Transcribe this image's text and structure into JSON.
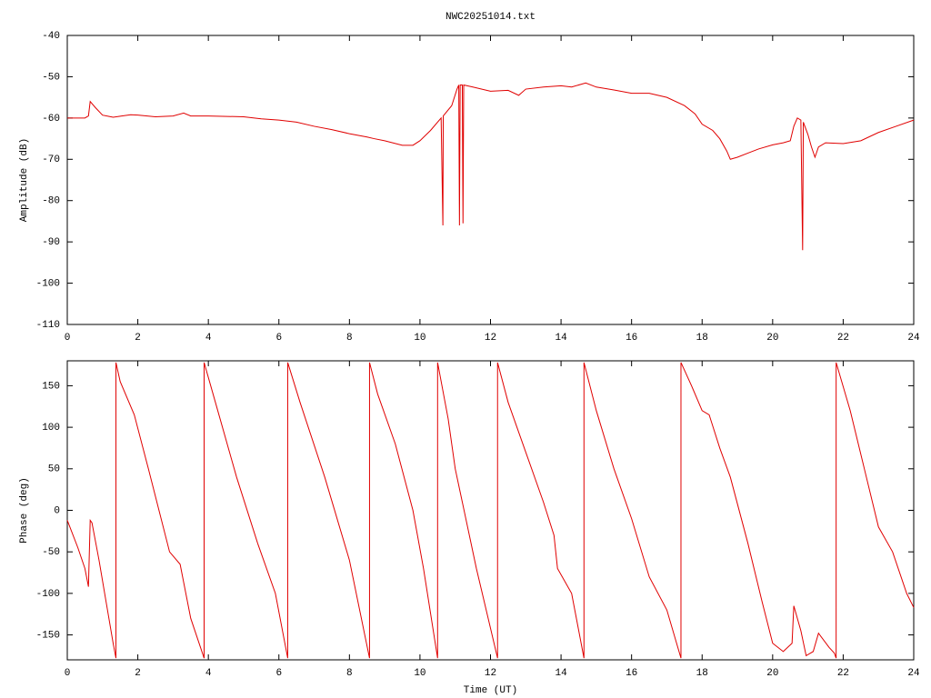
{
  "chart_data": [
    {
      "type": "line",
      "title": "NWC20251014.txt",
      "ylabel": "Amplitude (dB)",
      "color": "#e00000",
      "xlim": [
        0,
        24
      ],
      "xticks": [
        0,
        2,
        4,
        6,
        8,
        10,
        12,
        14,
        16,
        18,
        20,
        22,
        24
      ],
      "ylim": [
        -110,
        -40
      ],
      "yticks": [
        -110,
        -100,
        -90,
        -80,
        -70,
        -60,
        -50,
        -40
      ],
      "x": [
        0,
        0.5,
        0.6,
        0.65,
        0.8,
        1.0,
        1.3,
        1.8,
        2.0,
        2.5,
        3.0,
        3.3,
        3.5,
        4,
        5,
        5.5,
        6,
        6.5,
        7,
        7.5,
        8,
        8.5,
        8.7,
        9,
        9.5,
        9.8,
        10,
        10.3,
        10.6,
        10.65,
        10.66,
        10.9,
        11.05,
        11.1,
        11.12,
        11.14,
        11.2,
        11.22,
        11.24,
        11.5,
        12,
        12.5,
        12.8,
        13,
        13.5,
        14,
        14.3,
        14.7,
        15,
        15.5,
        16,
        16.5,
        17,
        17.5,
        17.8,
        18,
        18.3,
        18.5,
        18.7,
        18.8,
        19,
        19.3,
        19.6,
        20,
        20.3,
        20.5,
        20.6,
        20.7,
        20.8,
        20.85,
        20.87,
        21,
        21.1,
        21.2,
        21.3,
        21.5,
        22,
        22.5,
        23,
        23.5,
        24
      ],
      "values": [
        -60,
        -60,
        -59.5,
        -56,
        -57.5,
        -59.3,
        -59.8,
        -59.2,
        -59.3,
        -59.7,
        -59.5,
        -58.8,
        -59.5,
        -59.5,
        -59.7,
        -60.2,
        -60.5,
        -61,
        -62,
        -62.8,
        -63.8,
        -64.6,
        -65,
        -65.5,
        -66.6,
        -66.6,
        -65.5,
        -63,
        -60,
        -86,
        -59.5,
        -57,
        -53,
        -52,
        -86,
        -52,
        -52,
        -85.5,
        -52,
        -52.5,
        -53.5,
        -53.3,
        -54.5,
        -53,
        -52.5,
        -52.2,
        -52.5,
        -51.5,
        -52.5,
        -53.2,
        -54,
        -54,
        -55,
        -57,
        -59,
        -61.5,
        -63,
        -65,
        -68,
        -70,
        -69.5,
        -68.5,
        -67.5,
        -66.5,
        -66,
        -65.5,
        -62,
        -60,
        -60.5,
        -92,
        -61,
        -64,
        -67,
        -69.5,
        -67,
        -66,
        -66.2,
        -65.5,
        -63.5,
        -62,
        -60.5
      ]
    },
    {
      "type": "line",
      "ylabel": "Phase (deg)",
      "xlabel": "Time (UT)",
      "color": "#e00000",
      "xlim": [
        0,
        24
      ],
      "xticks": [
        0,
        2,
        4,
        6,
        8,
        10,
        12,
        14,
        16,
        18,
        20,
        22,
        24
      ],
      "ylim": [
        -180,
        180
      ],
      "yticks": [
        -150,
        -100,
        -50,
        0,
        50,
        100,
        150
      ],
      "x": [
        0,
        0.3,
        0.5,
        0.6,
        0.65,
        0.7,
        0.9,
        1.1,
        1.3,
        1.38,
        1.38,
        1.5,
        1.9,
        2.3,
        2.6,
        2.9,
        3.2,
        3.5,
        3.88,
        3.88,
        4.2,
        4.8,
        5.4,
        5.9,
        6.25,
        6.25,
        6.6,
        7.3,
        8,
        8.57,
        8.57,
        8.8,
        9.3,
        9.8,
        10.1,
        10.5,
        10.5,
        10.8,
        11.0,
        11.2,
        11.6,
        12.2,
        12.2,
        12.5,
        13,
        13.5,
        13.8,
        13.9,
        14.3,
        14.65,
        14.65,
        15,
        15.5,
        16,
        16.5,
        17,
        17.4,
        17.4,
        17.7,
        18,
        18.2,
        18.5,
        18.8,
        19.3,
        19.7,
        20,
        20.3,
        20.55,
        20.6,
        20.8,
        20.95,
        21.15,
        21.3,
        21.6,
        21.75,
        21.8,
        21.8,
        22.2,
        22.6,
        23,
        23.4,
        23.8,
        24
      ],
      "values": [
        -12,
        -45,
        -70,
        -92,
        -12,
        -15,
        -60,
        -110,
        -160,
        -178,
        178,
        155,
        115,
        50,
        0,
        -50,
        -65,
        -130,
        -178,
        178,
        130,
        40,
        -40,
        -100,
        -178,
        178,
        130,
        40,
        -60,
        -178,
        178,
        140,
        80,
        0,
        -70,
        -178,
        178,
        110,
        50,
        10,
        -70,
        -178,
        178,
        130,
        70,
        10,
        -30,
        -70,
        -100,
        -178,
        178,
        120,
        50,
        -10,
        -80,
        -120,
        -178,
        178,
        150,
        120,
        115,
        75,
        40,
        -40,
        -110,
        -160,
        -170,
        -160,
        -115,
        -145,
        -175,
        -170,
        -148,
        -165,
        -172,
        -178,
        178,
        120,
        50,
        -20,
        -50,
        -100,
        -117
      ]
    }
  ]
}
